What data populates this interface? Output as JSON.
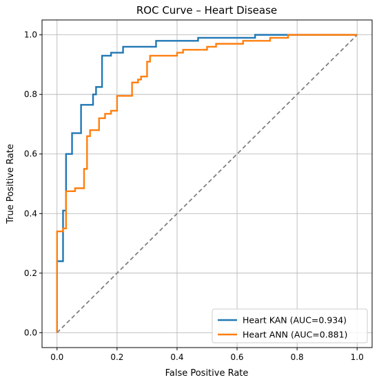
{
  "chart_data": {
    "type": "line",
    "title": "ROC Curve – Heart Disease",
    "xlabel": "False Positive Rate",
    "ylabel": "True Positive Rate",
    "xlim": [
      -0.05,
      1.05
    ],
    "ylim": [
      -0.05,
      1.05
    ],
    "xticks": [
      "0.0",
      "0.2",
      "0.4",
      "0.6",
      "0.8",
      "1.0"
    ],
    "yticks": [
      "0.0",
      "0.2",
      "0.4",
      "0.6",
      "0.8",
      "1.0"
    ],
    "grid": true,
    "legend_position": "lower-right",
    "series": [
      {
        "name": "Heart KAN (AUC=0.934)",
        "color": "#1f77b4",
        "points": [
          [
            0.0,
            0.0
          ],
          [
            0.0,
            0.24
          ],
          [
            0.02,
            0.24
          ],
          [
            0.02,
            0.41
          ],
          [
            0.03,
            0.41
          ],
          [
            0.03,
            0.6
          ],
          [
            0.05,
            0.6
          ],
          [
            0.05,
            0.67
          ],
          [
            0.08,
            0.67
          ],
          [
            0.08,
            0.765
          ],
          [
            0.12,
            0.765
          ],
          [
            0.12,
            0.8
          ],
          [
            0.13,
            0.8
          ],
          [
            0.13,
            0.825
          ],
          [
            0.15,
            0.825
          ],
          [
            0.15,
            0.93
          ],
          [
            0.18,
            0.93
          ],
          [
            0.18,
            0.94
          ],
          [
            0.22,
            0.94
          ],
          [
            0.22,
            0.96
          ],
          [
            0.33,
            0.96
          ],
          [
            0.33,
            0.98
          ],
          [
            0.47,
            0.98
          ],
          [
            0.47,
            0.99
          ],
          [
            0.66,
            0.99
          ],
          [
            0.66,
            1.0
          ],
          [
            1.0,
            1.0
          ]
        ]
      },
      {
        "name": "Heart ANN (AUC=0.881)",
        "color": "#ff7f0e",
        "points": [
          [
            0.0,
            0.0
          ],
          [
            0.0,
            0.34
          ],
          [
            0.02,
            0.34
          ],
          [
            0.02,
            0.35
          ],
          [
            0.03,
            0.35
          ],
          [
            0.03,
            0.475
          ],
          [
            0.06,
            0.475
          ],
          [
            0.06,
            0.485
          ],
          [
            0.09,
            0.485
          ],
          [
            0.09,
            0.55
          ],
          [
            0.1,
            0.55
          ],
          [
            0.1,
            0.66
          ],
          [
            0.11,
            0.66
          ],
          [
            0.11,
            0.68
          ],
          [
            0.14,
            0.68
          ],
          [
            0.14,
            0.72
          ],
          [
            0.16,
            0.72
          ],
          [
            0.16,
            0.735
          ],
          [
            0.18,
            0.735
          ],
          [
            0.18,
            0.745
          ],
          [
            0.2,
            0.745
          ],
          [
            0.2,
            0.795
          ],
          [
            0.25,
            0.795
          ],
          [
            0.25,
            0.84
          ],
          [
            0.27,
            0.84
          ],
          [
            0.27,
            0.85
          ],
          [
            0.28,
            0.85
          ],
          [
            0.28,
            0.86
          ],
          [
            0.3,
            0.86
          ],
          [
            0.3,
            0.91
          ],
          [
            0.31,
            0.91
          ],
          [
            0.31,
            0.93
          ],
          [
            0.4,
            0.93
          ],
          [
            0.4,
            0.94
          ],
          [
            0.42,
            0.94
          ],
          [
            0.42,
            0.95
          ],
          [
            0.5,
            0.95
          ],
          [
            0.5,
            0.96
          ],
          [
            0.53,
            0.96
          ],
          [
            0.53,
            0.97
          ],
          [
            0.62,
            0.97
          ],
          [
            0.62,
            0.98
          ],
          [
            0.71,
            0.98
          ],
          [
            0.71,
            0.99
          ],
          [
            0.77,
            0.99
          ],
          [
            0.77,
            1.0
          ],
          [
            1.0,
            1.0
          ]
        ]
      }
    ],
    "reference_line": {
      "color": "#7f7f7f",
      "points": [
        [
          0.0,
          0.0
        ],
        [
          1.0,
          1.0
        ]
      ]
    }
  }
}
